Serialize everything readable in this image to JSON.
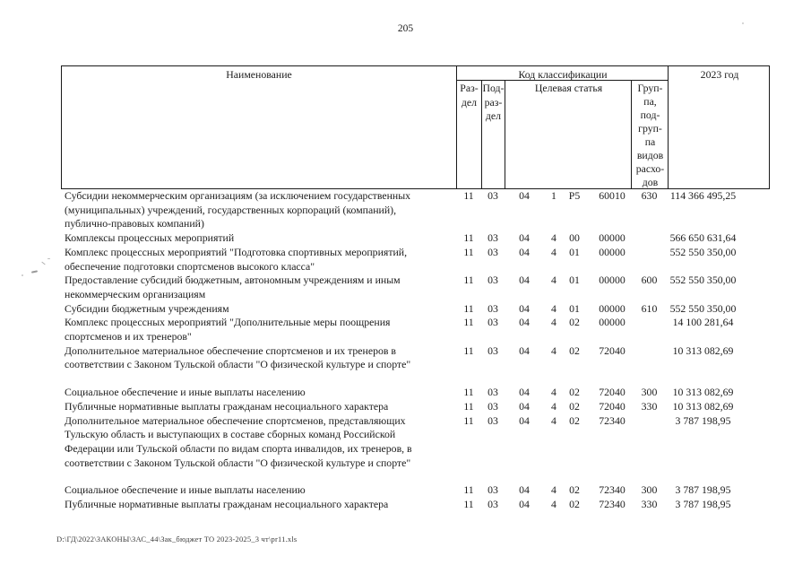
{
  "page": {
    "number": "205",
    "footer_path": "D:\\ГД\\2022\\ЗАКОНЫ\\ЗАС_44\\Зак_бюджет ТО 2023-2025_3 чт\\pr11.xls"
  },
  "table": {
    "header": {
      "name": "Наименование",
      "classification": "Код классификации",
      "year": "2023 год",
      "razdel_lines": [
        "Раз-",
        "дел"
      ],
      "podrazdel_lines": [
        "Под-",
        "раз-",
        "дел"
      ],
      "target_article": "Целевая статья",
      "group_lines": [
        "Груп-",
        "па,",
        "под-",
        "груп-",
        "па",
        "видов",
        "расхо-",
        "дов"
      ]
    },
    "rows": [
      {
        "name_lines": [
          "Субсидии некоммерческим организациям (за исключением государственных",
          "(муниципальных) учреждений, государственных корпораций (компаний),",
          "публично-правовых компаний)"
        ],
        "rz": "11",
        "pr": "03",
        "cs": [
          "04",
          "1",
          "P5",
          "60010"
        ],
        "vr": "630",
        "amount": "114 366 495,25",
        "gap": false
      },
      {
        "name_lines": [
          "Комплексы процессных мероприятий"
        ],
        "rz": "11",
        "pr": "03",
        "cs": [
          "04",
          "4",
          "00",
          "00000"
        ],
        "vr": "",
        "amount": "566 650 631,64",
        "gap": false
      },
      {
        "name_lines": [
          "Комплекс процессных мероприятий \"Подготовка спортивных мероприятий,",
          "обеспечение подготовки спортсменов высокого класса\""
        ],
        "rz": "11",
        "pr": "03",
        "cs": [
          "04",
          "4",
          "01",
          "00000"
        ],
        "vr": "",
        "amount": "552 550 350,00",
        "gap": false
      },
      {
        "name_lines": [
          "Предоставление субсидий бюджетным, автономным учреждениям и иным",
          "некоммерческим организациям"
        ],
        "rz": "11",
        "pr": "03",
        "cs": [
          "04",
          "4",
          "01",
          "00000"
        ],
        "vr": "600",
        "amount": "552 550 350,00",
        "gap": false
      },
      {
        "name_lines": [
          "Субсидии бюджетным учреждениям"
        ],
        "rz": "11",
        "pr": "03",
        "cs": [
          "04",
          "4",
          "01",
          "00000"
        ],
        "vr": "610",
        "amount": "552 550 350,00",
        "gap": false
      },
      {
        "name_lines": [
          "Комплекс процессных мероприятий \"Дополнительные меры поощрения",
          "спортсменов и их тренеров\""
        ],
        "rz": "11",
        "pr": "03",
        "cs": [
          "04",
          "4",
          "02",
          "00000"
        ],
        "vr": "",
        "amount": "14 100 281,64",
        "gap": false
      },
      {
        "name_lines": [
          "Дополнительное материальное обеспечение спортсменов и их тренеров в",
          "соответствии с Законом Тульской области \"О физической культуре и спорте\""
        ],
        "rz": "11",
        "pr": "03",
        "cs": [
          "04",
          "4",
          "02",
          "72040"
        ],
        "vr": "",
        "amount": "10 313 082,69",
        "gap": false
      },
      {
        "name_lines": [
          "Социальное обеспечение и иные выплаты населению"
        ],
        "rz": "11",
        "pr": "03",
        "cs": [
          "04",
          "4",
          "02",
          "72040"
        ],
        "vr": "300",
        "amount": "10 313 082,69",
        "gap": true
      },
      {
        "name_lines": [
          "Публичные нормативные выплаты гражданам несоциального характера"
        ],
        "rz": "11",
        "pr": "03",
        "cs": [
          "04",
          "4",
          "02",
          "72040"
        ],
        "vr": "330",
        "amount": "10 313 082,69",
        "gap": false
      },
      {
        "name_lines": [
          "Дополнительное материальное обеспечение спортсменов, представляющих",
          "Тульскую область и выступающих в составе сборных команд Российской",
          "Федерации или Тульской области по видам спорта инвалидов, их тренеров, в",
          "соответствии с Законом Тульской области \"О физической культуре и спорте\""
        ],
        "rz": "11",
        "pr": "03",
        "cs": [
          "04",
          "4",
          "02",
          "72340"
        ],
        "vr": "",
        "amount": "3 787 198,95",
        "gap": false
      },
      {
        "name_lines": [
          "Социальное обеспечение и иные выплаты населению"
        ],
        "rz": "11",
        "pr": "03",
        "cs": [
          "04",
          "4",
          "02",
          "72340"
        ],
        "vr": "300",
        "amount": "3 787 198,95",
        "gap": true
      },
      {
        "name_lines": [
          "Публичные нормативные выплаты гражданам несоциального характера"
        ],
        "rz": "11",
        "pr": "03",
        "cs": [
          "04",
          "4",
          "02",
          "72340"
        ],
        "vr": "330",
        "amount": "3 787 198,95",
        "gap": false
      }
    ]
  }
}
